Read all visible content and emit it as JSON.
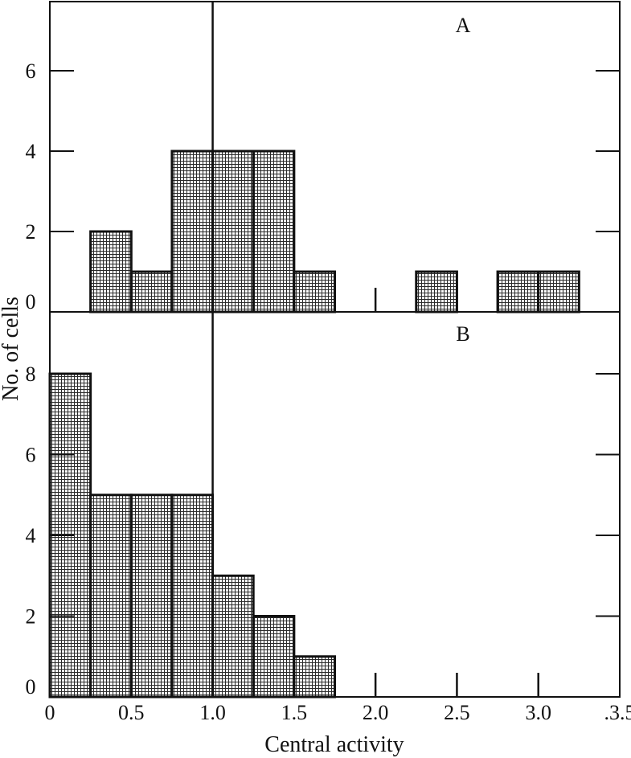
{
  "chart_data": [
    {
      "type": "bar",
      "panel_label": "A",
      "bin_width": 0.25,
      "bins_start": [
        0.25,
        0.5,
        0.75,
        1.0,
        1.25,
        1.5,
        2.25,
        2.75,
        3.0
      ],
      "values": [
        2,
        1,
        4,
        4,
        4,
        1,
        1,
        1,
        1
      ],
      "ylim": [
        0,
        7.5
      ],
      "yticks": [
        0,
        2,
        4,
        6
      ]
    },
    {
      "type": "bar",
      "panel_label": "B",
      "bin_width": 0.25,
      "bins_start": [
        0.0,
        0.25,
        0.5,
        0.75,
        1.0,
        1.25,
        1.5
      ],
      "values": [
        8,
        5,
        5,
        5,
        3,
        2,
        1
      ],
      "ylim": [
        0,
        8.5
      ],
      "yticks": [
        0,
        2,
        4,
        6,
        8
      ]
    }
  ],
  "axes": {
    "xlabel": "Central activity",
    "ylabel": "No. of cells",
    "xlim": [
      0,
      3.5
    ],
    "xticks": [
      0,
      0.5,
      1.0,
      1.5,
      2.0,
      2.5,
      3.0,
      3.5
    ],
    "xtick_labels": [
      "0",
      "0.5",
      "1.0",
      "1.5",
      "2.0",
      "2.5",
      "3.0",
      ".3.5"
    ],
    "reference_line_x": 1.0
  },
  "colors": {
    "ink": "#111111",
    "fill_mesh": "#555555",
    "background": "#ffffff"
  }
}
